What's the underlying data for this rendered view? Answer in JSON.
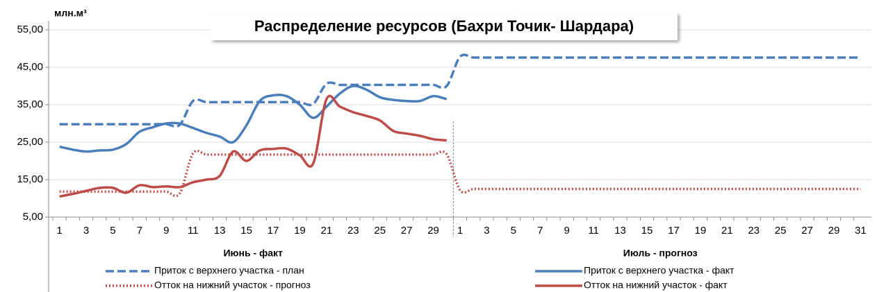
{
  "chart_data": {
    "type": "line",
    "title": "Распределение ресурсов (Бахри Точик- Шардара)",
    "y_label": "млн.м³",
    "x_groups": [
      "Июнь - факт",
      "Июль - прогноз"
    ],
    "group_sizes": [
      30,
      31
    ],
    "categories": [
      "1",
      null,
      "3",
      null,
      "5",
      null,
      "7",
      null,
      "9",
      null,
      "11",
      null,
      "13",
      null,
      "15",
      null,
      "17",
      null,
      "19",
      null,
      "21",
      null,
      "23",
      null,
      "25",
      null,
      "27",
      null,
      "29",
      null,
      "1",
      null,
      "3",
      null,
      "5",
      null,
      "7",
      null,
      "9",
      null,
      "11",
      null,
      "13",
      null,
      "15",
      null,
      "17",
      null,
      "19",
      null,
      "21",
      null,
      "23",
      null,
      "25",
      null,
      "27",
      null,
      "29",
      null,
      "31"
    ],
    "ylim": [
      5,
      55
    ],
    "yticks": [
      {
        "value": 5,
        "label": "5,00"
      },
      {
        "value": 15,
        "label": "15,00"
      },
      {
        "value": 25,
        "label": "25,00"
      },
      {
        "value": 35,
        "label": "35,00"
      },
      {
        "value": 45,
        "label": "45,00"
      },
      {
        "value": 55,
        "label": "55,00"
      }
    ],
    "grid": true,
    "legend": "bottom",
    "series": [
      {
        "name": "Приток с верхнего участка - план",
        "color": "#4a7ebb",
        "dash": "dashed",
        "values": [
          29.8,
          29.8,
          29.8,
          29.8,
          29.8,
          29.8,
          29.8,
          29.8,
          29.8,
          29.6,
          36.0,
          35.7,
          35.7,
          35.7,
          35.7,
          35.7,
          35.7,
          35.7,
          35.7,
          35.2,
          40.6,
          40.3,
          40.3,
          40.3,
          40.3,
          40.3,
          40.3,
          40.3,
          40.3,
          40.0,
          47.8,
          47.6,
          47.6,
          47.6,
          47.6,
          47.6,
          47.6,
          47.6,
          47.6,
          47.6,
          47.6,
          47.6,
          47.6,
          47.6,
          47.6,
          47.6,
          47.6,
          47.6,
          47.6,
          47.6,
          47.6,
          47.6,
          47.6,
          47.6,
          47.6,
          47.6,
          47.6,
          47.6,
          47.6,
          47.6,
          47.6
        ]
      },
      {
        "name": "Приток с верхнего участка - факт",
        "color": "#4a7ebb",
        "dash": "solid",
        "values": [
          23.8,
          23.0,
          22.5,
          22.8,
          23.0,
          24.5,
          27.8,
          29.0,
          30.0,
          30.0,
          28.8,
          27.5,
          26.5,
          25.0,
          29.5,
          36.0,
          37.5,
          37.3,
          35.0,
          31.5,
          34.5,
          38.0,
          40.0,
          39.0,
          37.0,
          36.3,
          36.0,
          36.0,
          37.3,
          36.5,
          null,
          null,
          null,
          null,
          null,
          null,
          null,
          null,
          null,
          null,
          null,
          null,
          null,
          null,
          null,
          null,
          null,
          null,
          null,
          null,
          null,
          null,
          null,
          null,
          null,
          null,
          null,
          null,
          null,
          null,
          null
        ]
      },
      {
        "name": "Отток на нижний участок - прогноз",
        "color": "#be4b48",
        "dash": "dotted",
        "values": [
          11.8,
          11.8,
          11.8,
          11.8,
          11.8,
          11.8,
          11.8,
          11.8,
          11.8,
          11.3,
          22.0,
          21.7,
          21.7,
          21.7,
          21.7,
          21.7,
          21.7,
          21.7,
          21.7,
          21.7,
          21.7,
          21.7,
          21.7,
          21.7,
          21.7,
          21.7,
          21.7,
          21.7,
          21.7,
          21.8,
          12.2,
          12.5,
          12.5,
          12.5,
          12.5,
          12.5,
          12.5,
          12.5,
          12.5,
          12.5,
          12.5,
          12.5,
          12.5,
          12.5,
          12.5,
          12.5,
          12.5,
          12.5,
          12.5,
          12.5,
          12.5,
          12.5,
          12.5,
          12.5,
          12.5,
          12.5,
          12.5,
          12.5,
          12.5,
          12.5,
          12.5
        ]
      },
      {
        "name": "Отток на нижний участок - факт",
        "color": "#be4b48",
        "dash": "solid",
        "values": [
          10.5,
          11.2,
          12.0,
          12.8,
          12.8,
          11.5,
          13.5,
          13.0,
          13.2,
          13.0,
          14.3,
          15.0,
          16.0,
          22.5,
          20.0,
          22.8,
          23.2,
          23.3,
          21.5,
          19.3,
          36.5,
          34.5,
          33.0,
          32.0,
          30.8,
          28.0,
          27.3,
          26.7,
          25.8,
          25.5,
          null,
          null,
          null,
          null,
          null,
          null,
          null,
          null,
          null,
          null,
          null,
          null,
          null,
          null,
          null,
          null,
          null,
          null,
          null,
          null,
          null,
          null,
          null,
          null,
          null,
          null,
          null,
          null,
          null,
          null,
          null
        ]
      }
    ]
  }
}
